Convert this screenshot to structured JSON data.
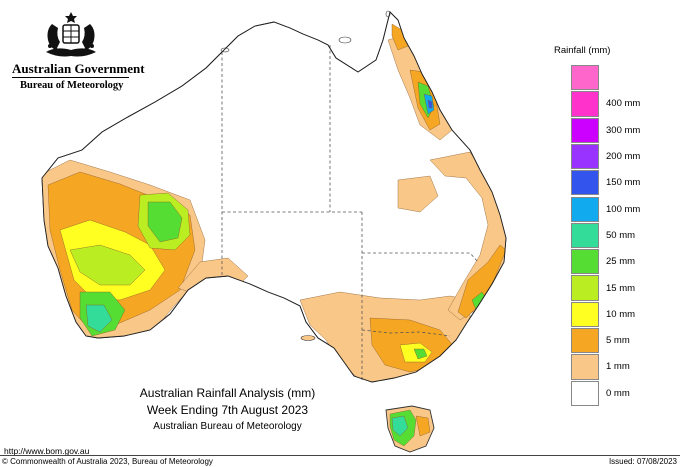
{
  "header": {
    "government": "Australian Government",
    "bureau": "Bureau of Meteorology"
  },
  "legend": {
    "title": "Rainfall (mm)",
    "items": [
      {
        "label": "",
        "color": "#ff66cc"
      },
      {
        "label": "400 mm",
        "color": "#ff33cc"
      },
      {
        "label": "300 mm",
        "color": "#cc00ff"
      },
      {
        "label": "200 mm",
        "color": "#9933ff"
      },
      {
        "label": "150 mm",
        "color": "#3355ee"
      },
      {
        "label": "100 mm",
        "color": "#11aaee"
      },
      {
        "label": "50 mm",
        "color": "#33dd99"
      },
      {
        "label": "25 mm",
        "color": "#55dd33"
      },
      {
        "label": "15 mm",
        "color": "#bbee22"
      },
      {
        "label": "10 mm",
        "color": "#ffff22"
      },
      {
        "label": "5 mm",
        "color": "#f5a623"
      },
      {
        "label": "1 mm",
        "color": "#f9c889"
      },
      {
        "label": "0 mm",
        "color": "#ffffff"
      }
    ]
  },
  "caption": {
    "line1": "Australian Rainfall Analysis (mm)",
    "line2": "Week Ending 7th August 2023",
    "line3": "Australian Bureau of Meteorology"
  },
  "footer": {
    "url": "http://www.bom.gov.au",
    "copyright": "© Commonwealth of Australia 2023, Bureau of Meteorology",
    "issued": "Issued: 07/08/2023"
  }
}
